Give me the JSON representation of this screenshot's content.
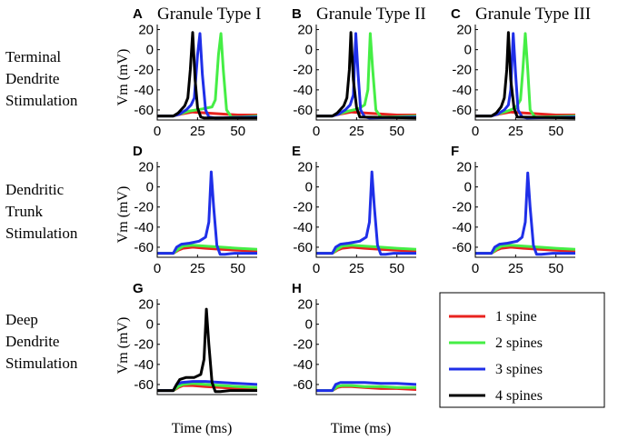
{
  "figure": {
    "row_labels": [
      [
        "Terminal",
        "Dendrite",
        "Stimulation"
      ],
      [
        "Dendritic",
        "Trunk",
        "Stimulation"
      ],
      [
        "Deep",
        "Dendrite",
        "Stimulation"
      ]
    ],
    "ylabel": "Vm (mV)",
    "xlabel": "Time (ms)",
    "legend": {
      "entries": [
        {
          "label": "1 spine",
          "color": "#e8231f"
        },
        {
          "label": "2 spines",
          "color": "#45ee45"
        },
        {
          "label": "3 spines",
          "color": "#1f2fe8"
        },
        {
          "label": "4 spines",
          "color": "#000000"
        }
      ]
    }
  },
  "chart_data": [
    {
      "type": "line",
      "letter": "A",
      "title": "Granule Type I",
      "xlim": [
        0,
        62
      ],
      "ylim": [
        -70,
        25
      ],
      "xticks": [
        0,
        25,
        50
      ],
      "yticks": [
        20,
        0,
        -20,
        -40,
        -60
      ],
      "series": [
        {
          "name": "1 spine",
          "color": "#e8231f",
          "x": [
            0,
            10,
            15,
            22,
            30,
            40,
            50,
            62
          ],
          "y": [
            -66,
            -66,
            -64,
            -62,
            -63,
            -64,
            -65,
            -65
          ]
        },
        {
          "name": "2 spines",
          "color": "#45ee45",
          "x": [
            0,
            10,
            14,
            20,
            28,
            34,
            36,
            38,
            39.5,
            41,
            43,
            46,
            52,
            62
          ],
          "y": [
            -66,
            -66,
            -64,
            -61,
            -59,
            -57,
            -50,
            -5,
            16,
            -20,
            -60,
            -67,
            -67,
            -66
          ]
        },
        {
          "name": "3 spines",
          "color": "#1f2fe8",
          "x": [
            0,
            10,
            14,
            18,
            21,
            23,
            25,
            26.5,
            28,
            30,
            32,
            36,
            62
          ],
          "y": [
            -66,
            -66,
            -64,
            -60,
            -55,
            -48,
            -5,
            16,
            -25,
            -60,
            -67,
            -68,
            -67
          ]
        },
        {
          "name": "4 spines",
          "color": "#000000",
          "x": [
            0,
            10,
            13,
            17,
            19,
            20.5,
            22,
            23.5,
            25,
            27,
            29,
            62
          ],
          "y": [
            -66,
            -66,
            -63,
            -56,
            -48,
            -20,
            17,
            -30,
            -58,
            -67,
            -68,
            -68
          ]
        }
      ]
    },
    {
      "type": "line",
      "letter": "B",
      "title": "Granule Type II",
      "xlim": [
        0,
        62
      ],
      "ylim": [
        -70,
        25
      ],
      "xticks": [
        0,
        25,
        50
      ],
      "yticks": [
        20,
        0,
        -20,
        -40,
        -60
      ],
      "series": [
        {
          "name": "1 spine",
          "color": "#e8231f",
          "x": [
            0,
            10,
            15,
            22,
            30,
            40,
            50,
            62
          ],
          "y": [
            -66,
            -66,
            -64,
            -62,
            -63,
            -64,
            -65,
            -65
          ]
        },
        {
          "name": "2 spines",
          "color": "#45ee45",
          "x": [
            0,
            10,
            14,
            20,
            26,
            30,
            32,
            33.5,
            35,
            37,
            40,
            45,
            62
          ],
          "y": [
            -66,
            -66,
            -64,
            -61,
            -59,
            -55,
            -40,
            16,
            -20,
            -60,
            -67,
            -67,
            -66
          ]
        },
        {
          "name": "3 spines",
          "color": "#1f2fe8",
          "x": [
            0,
            10,
            14,
            18,
            21,
            23,
            24.5,
            26,
            27.5,
            30,
            33,
            62
          ],
          "y": [
            -66,
            -66,
            -64,
            -60,
            -55,
            -45,
            16,
            -25,
            -60,
            -67,
            -68,
            -67
          ]
        },
        {
          "name": "4 spines",
          "color": "#000000",
          "x": [
            0,
            10,
            13,
            17,
            19,
            20.5,
            21.5,
            23,
            25,
            27,
            62
          ],
          "y": [
            -66,
            -66,
            -63,
            -56,
            -48,
            -20,
            17,
            -30,
            -58,
            -67,
            -68
          ]
        }
      ]
    },
    {
      "type": "line",
      "letter": "C",
      "title": "Granule Type III",
      "xlim": [
        0,
        62
      ],
      "ylim": [
        -70,
        25
      ],
      "xticks": [
        0,
        25,
        50
      ],
      "yticks": [
        20,
        0,
        -20,
        -40,
        -60
      ],
      "series": [
        {
          "name": "1 spine",
          "color": "#e8231f",
          "x": [
            0,
            10,
            15,
            22,
            30,
            40,
            50,
            62
          ],
          "y": [
            -66,
            -66,
            -64,
            -62,
            -63,
            -64,
            -65,
            -65
          ]
        },
        {
          "name": "2 spines",
          "color": "#45ee45",
          "x": [
            0,
            10,
            14,
            20,
            25,
            28,
            29.5,
            31,
            32.5,
            34,
            37,
            42,
            62
          ],
          "y": [
            -66,
            -66,
            -64,
            -61,
            -58,
            -50,
            -20,
            16,
            -20,
            -60,
            -67,
            -67,
            -66
          ]
        },
        {
          "name": "3 spines",
          "color": "#1f2fe8",
          "x": [
            0,
            10,
            14,
            18,
            20.5,
            22,
            23.5,
            25,
            26.5,
            29,
            32,
            62
          ],
          "y": [
            -66,
            -66,
            -64,
            -60,
            -55,
            -40,
            16,
            -25,
            -60,
            -67,
            -68,
            -67
          ]
        },
        {
          "name": "4 spines",
          "color": "#000000",
          "x": [
            0,
            10,
            13,
            16,
            18,
            19.5,
            20.5,
            22,
            24,
            26,
            62
          ],
          "y": [
            -66,
            -66,
            -63,
            -57,
            -48,
            -20,
            17,
            -30,
            -58,
            -67,
            -68
          ]
        }
      ]
    },
    {
      "type": "line",
      "letter": "D",
      "title": "",
      "xlim": [
        0,
        62
      ],
      "ylim": [
        -70,
        25
      ],
      "xticks": [
        0,
        25,
        50
      ],
      "yticks": [
        20,
        0,
        -20,
        -40,
        -60
      ],
      "series": [
        {
          "name": "1 spine",
          "color": "#e8231f",
          "x": [
            0,
            10,
            13,
            16,
            22,
            30,
            40,
            50,
            62
          ],
          "y": [
            -66,
            -66,
            -63,
            -61,
            -60,
            -61,
            -62,
            -63,
            -64
          ]
        },
        {
          "name": "2 spines",
          "color": "#45ee45",
          "x": [
            0,
            10,
            13,
            16,
            22,
            30,
            40,
            50,
            62
          ],
          "y": [
            -66,
            -66,
            -62,
            -59,
            -58,
            -59,
            -60,
            -61,
            -62
          ]
        },
        {
          "name": "3 spines",
          "color": "#1f2fe8",
          "x": [
            0,
            10,
            12,
            15,
            20,
            26,
            30,
            32,
            33.5,
            35,
            37,
            39,
            42,
            48,
            62
          ],
          "y": [
            -66,
            -66,
            -60,
            -57,
            -56,
            -54,
            -50,
            -35,
            15,
            -20,
            -58,
            -67,
            -67,
            -66,
            -66
          ]
        }
      ]
    },
    {
      "type": "line",
      "letter": "E",
      "title": "",
      "xlim": [
        0,
        62
      ],
      "ylim": [
        -70,
        25
      ],
      "xticks": [
        0,
        25,
        50
      ],
      "yticks": [
        20,
        0,
        -20,
        -40,
        -60
      ],
      "series": [
        {
          "name": "1 spine",
          "color": "#e8231f",
          "x": [
            0,
            10,
            13,
            16,
            22,
            30,
            40,
            50,
            62
          ],
          "y": [
            -66,
            -66,
            -63,
            -61,
            -60,
            -61,
            -62,
            -63,
            -64
          ]
        },
        {
          "name": "2 spines",
          "color": "#45ee45",
          "x": [
            0,
            10,
            13,
            16,
            22,
            30,
            40,
            50,
            62
          ],
          "y": [
            -66,
            -66,
            -62,
            -59,
            -58,
            -59,
            -60,
            -61,
            -62
          ]
        },
        {
          "name": "3 spines",
          "color": "#1f2fe8",
          "x": [
            0,
            10,
            12,
            15,
            20,
            27,
            31,
            33,
            34.5,
            36,
            38,
            40,
            43,
            48,
            62
          ],
          "y": [
            -66,
            -66,
            -60,
            -57,
            -56,
            -54,
            -50,
            -35,
            15,
            -20,
            -58,
            -67,
            -67,
            -66,
            -66
          ]
        }
      ]
    },
    {
      "type": "line",
      "letter": "F",
      "title": "",
      "xlim": [
        0,
        62
      ],
      "ylim": [
        -70,
        25
      ],
      "xticks": [
        0,
        25,
        50
      ],
      "yticks": [
        20,
        0,
        -20,
        -40,
        -60
      ],
      "series": [
        {
          "name": "1 spine",
          "color": "#e8231f",
          "x": [
            0,
            10,
            13,
            16,
            22,
            30,
            40,
            50,
            62
          ],
          "y": [
            -66,
            -66,
            -63,
            -61,
            -60,
            -61,
            -62,
            -63,
            -64
          ]
        },
        {
          "name": "2 spines",
          "color": "#45ee45",
          "x": [
            0,
            10,
            13,
            16,
            22,
            30,
            40,
            50,
            62
          ],
          "y": [
            -66,
            -66,
            -62,
            -59,
            -58,
            -59,
            -60,
            -61,
            -62
          ]
        },
        {
          "name": "3 spines",
          "color": "#1f2fe8",
          "x": [
            0,
            10,
            12,
            15,
            20,
            26,
            29,
            31,
            32.5,
            34,
            36,
            38,
            41,
            48,
            62
          ],
          "y": [
            -66,
            -66,
            -60,
            -57,
            -56,
            -54,
            -50,
            -35,
            14,
            -20,
            -58,
            -67,
            -67,
            -66,
            -66
          ]
        }
      ]
    },
    {
      "type": "line",
      "letter": "G",
      "title": "",
      "xlim": [
        0,
        62
      ],
      "ylim": [
        -70,
        25
      ],
      "xticks": [],
      "yticks": [
        20,
        0,
        -20,
        -40,
        -60
      ],
      "series": [
        {
          "name": "1 spine",
          "color": "#e8231f",
          "x": [
            0,
            10,
            13,
            16,
            22,
            30,
            40,
            50,
            62
          ],
          "y": [
            -66,
            -66,
            -63,
            -61,
            -61,
            -62,
            -63,
            -64,
            -65
          ]
        },
        {
          "name": "2 spines",
          "color": "#45ee45",
          "x": [
            0,
            10,
            13,
            16,
            22,
            30,
            40,
            50,
            62
          ],
          "y": [
            -66,
            -66,
            -62,
            -60,
            -59,
            -60,
            -61,
            -62,
            -63
          ]
        },
        {
          "name": "3 spines",
          "color": "#1f2fe8",
          "x": [
            0,
            10,
            12,
            15,
            22,
            30,
            40,
            50,
            62
          ],
          "y": [
            -66,
            -66,
            -60,
            -58,
            -57,
            -57,
            -58,
            -59,
            -60
          ]
        },
        {
          "name": "4 spines",
          "color": "#000000",
          "x": [
            0,
            10,
            12,
            14,
            18,
            23,
            27,
            29,
            30.5,
            32,
            34,
            36,
            39,
            45,
            62
          ],
          "y": [
            -66,
            -66,
            -60,
            -55,
            -53,
            -53,
            -50,
            -35,
            15,
            -20,
            -58,
            -67,
            -67,
            -66,
            -66
          ]
        }
      ]
    },
    {
      "type": "line",
      "letter": "H",
      "title": "",
      "xlim": [
        0,
        62
      ],
      "ylim": [
        -70,
        25
      ],
      "xticks": [],
      "yticks": [
        20,
        0,
        -20,
        -40,
        -60
      ],
      "series": [
        {
          "name": "1 spine",
          "color": "#e8231f",
          "x": [
            0,
            10,
            13,
            16,
            22,
            30,
            40,
            50,
            62
          ],
          "y": [
            -66,
            -66,
            -63,
            -62,
            -62,
            -63,
            -64,
            -64,
            -65
          ]
        },
        {
          "name": "2 spines",
          "color": "#45ee45",
          "x": [
            0,
            10,
            13,
            16,
            22,
            30,
            40,
            50,
            62
          ],
          "y": [
            -66,
            -66,
            -62,
            -61,
            -61,
            -62,
            -62,
            -63,
            -63
          ]
        },
        {
          "name": "3 spines",
          "color": "#1f2fe8",
          "x": [
            0,
            10,
            12,
            15,
            22,
            30,
            40,
            50,
            62
          ],
          "y": [
            -66,
            -66,
            -60,
            -58,
            -58,
            -58,
            -59,
            -59,
            -60
          ]
        }
      ]
    }
  ]
}
